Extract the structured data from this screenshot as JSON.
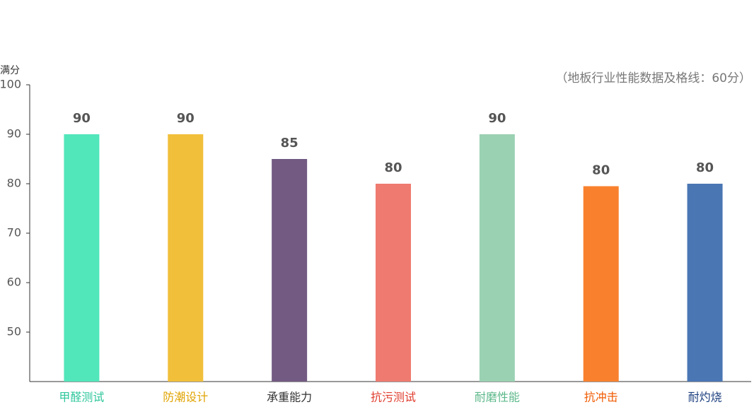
{
  "chart_data": {
    "type": "bar",
    "y_label": "满分",
    "note": "（地板行业性能数据及格线：60分）",
    "categories": [
      "甲醛测试",
      "防潮设计",
      "承重能力",
      "抗污测试",
      "耐磨性能",
      "抗冲击",
      "耐灼烧"
    ],
    "values": [
      90,
      90,
      85,
      80,
      90,
      79.5,
      80
    ],
    "value_labels": [
      "90",
      "90",
      "85",
      "80",
      "90",
      "80",
      "80"
    ],
    "colors": [
      "#52e6bb",
      "#f1bf3a",
      "#725a82",
      "#ef7a6f",
      "#9ad1b2",
      "#f9812d",
      "#4a76b4"
    ],
    "label_colors": [
      "#2ec79b",
      "#e0a300",
      "#333333",
      "#e03d2e",
      "#5cb88a",
      "#f05a00",
      "#1c3f7f"
    ],
    "ylim": [
      40,
      100
    ],
    "yticks": [
      50,
      60,
      70,
      80,
      90,
      100
    ]
  }
}
